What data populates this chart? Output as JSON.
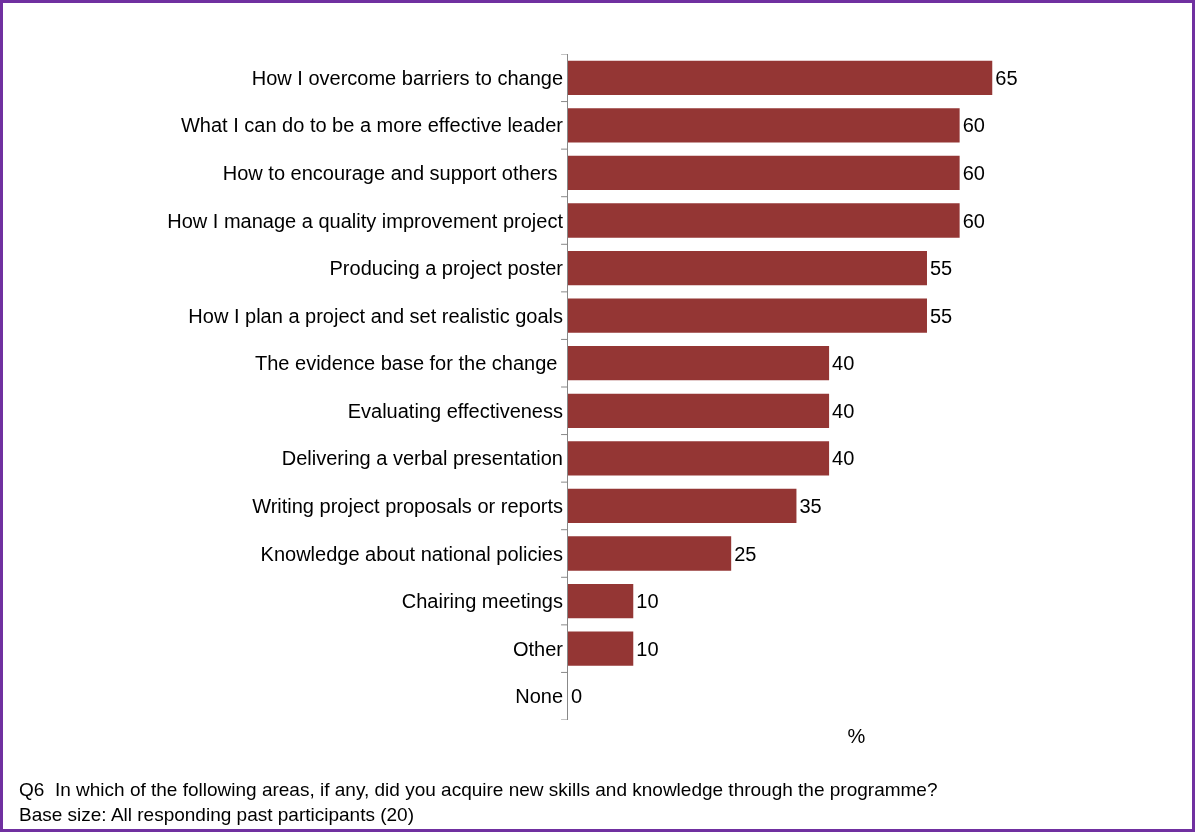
{
  "chart_data": {
    "type": "bar",
    "orientation": "horizontal",
    "categories": [
      "How I overcome barriers to change",
      "What I can do to be a more effective leader",
      "How to encourage and support others ",
      "How I manage a quality improvement project",
      "Producing a project poster",
      "How I plan a project and set realistic goals",
      "The evidence base for the change ",
      "Evaluating effectiveness",
      "Delivering a verbal presentation",
      "Writing project proposals or reports",
      "Knowledge about national policies",
      "Chairing meetings",
      "Other",
      "None"
    ],
    "values": [
      65,
      60,
      60,
      60,
      55,
      55,
      40,
      40,
      40,
      35,
      25,
      10,
      10,
      0
    ],
    "color": "#943634",
    "data_labels": true,
    "xlabel": "%",
    "grid": false,
    "annotations": [
      "Q6  In which of the following areas, if any, did you acquire new skills and knowledge through the programme?",
      "Base size: All responding past participants (20)"
    ]
  }
}
